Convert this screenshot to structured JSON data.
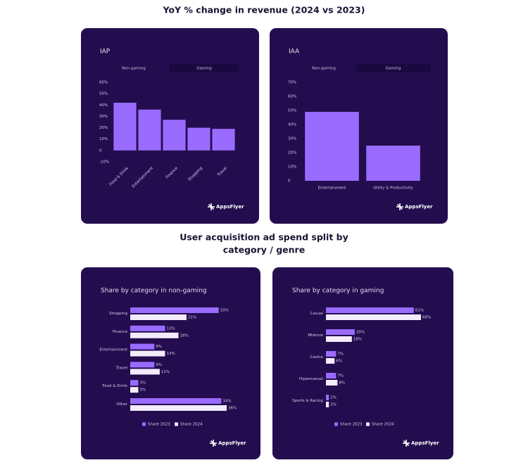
{
  "title": "YoY % change in revenue (2024 vs 2023)",
  "subtitle": [
    "User acquisition ad spend split by",
    "category / genre"
  ],
  "brand": "AppsFlyer",
  "chart_data": [
    {
      "type": "column",
      "title": "IAP",
      "tabs": [
        "Non-gaming",
        "Gaming"
      ],
      "categories": [
        "Food & Drink",
        "Entertainment",
        "Finance",
        "Shopping",
        "Travel"
      ],
      "values": [
        42,
        36,
        27,
        20,
        19
      ],
      "color": "#9a6bff",
      "ylim": [
        -10,
        60
      ],
      "yticks": [
        {
          "value": -10,
          "label": "-10%"
        },
        0,
        {
          "value": 10,
          "label": "10%"
        },
        {
          "value": 20,
          "label": "20%"
        },
        {
          "value": 30,
          "label": "30%"
        },
        {
          "value": 40,
          "label": "40%"
        },
        {
          "value": 50,
          "label": "50%"
        },
        {
          "value": 60,
          "label": "60%"
        }
      ]
    },
    {
      "type": "column",
      "title": "IAA",
      "tabs": [
        "Non-gaming",
        "Gaming"
      ],
      "categories": [
        "Entertainment",
        "Utility & Productivity"
      ],
      "values": [
        49,
        25
      ],
      "color": "#9a6bff",
      "ylim": [
        0,
        70
      ],
      "yticks": [
        0,
        {
          "value": 10,
          "label": "10%"
        },
        {
          "value": 20,
          "label": "20%"
        },
        {
          "value": 30,
          "label": "30%"
        },
        {
          "value": 40,
          "label": "40%"
        },
        {
          "value": 50,
          "label": "50%"
        },
        {
          "value": 60,
          "label": "60%"
        },
        {
          "value": 70,
          "label": "70%"
        }
      ]
    },
    {
      "type": "bar",
      "title": "Share by category in non-gaming",
      "categories": [
        "Shopping",
        "Finance",
        "Entertainment",
        "Travel",
        "Food & Drink",
        "Other"
      ],
      "series": [
        {
          "name": "Share 2023",
          "color": "#9a6bff",
          "values": [
            33,
            13,
            9,
            9,
            3,
            34
          ],
          "value_labels": [
            "33%",
            "13%",
            "9%",
            "9%",
            "3%",
            "34%"
          ]
        },
        {
          "name": "Share 2024",
          "color": "#f4ecfb",
          "values": [
            21,
            18,
            13,
            11,
            3,
            36
          ],
          "value_labels": [
            "21%",
            "18%",
            "13%",
            "11%",
            "3%",
            "36%"
          ]
        }
      ]
    },
    {
      "type": "bar",
      "title": "Share by category in gaming",
      "categories": [
        "Casual",
        "Midcore",
        "Casino",
        "Hypercasual",
        "Sports & Racing"
      ],
      "series": [
        {
          "name": "Share 2023",
          "color": "#9a6bff",
          "values": [
            61,
            20,
            7,
            7,
            2
          ],
          "value_labels": [
            "61%",
            "20%",
            "7%",
            "7%",
            "2%"
          ]
        },
        {
          "name": "Share 2024",
          "color": "#f4ecfb",
          "values": [
            66,
            18,
            6,
            8,
            2
          ],
          "value_labels": [
            "66%",
            "18%",
            "6%",
            "8%",
            "2%"
          ]
        }
      ]
    }
  ]
}
